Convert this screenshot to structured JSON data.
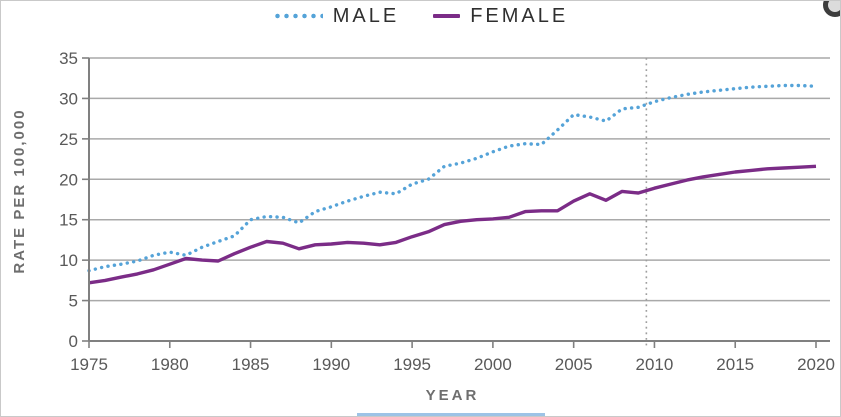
{
  "colors": {
    "male_line": "#55a3d8",
    "female_line": "#7b2c87",
    "grid": "#a9a9a9",
    "axis": "#808080",
    "tick_label": "#595959",
    "axis_title": "#6e6e6e",
    "legend_text": "#2f2f2f",
    "reference_line": "#9e9e9e",
    "bottom_strip": "#9dc3e6"
  },
  "figure": {
    "legend_position": "top-center",
    "corner_icon": "circle-badge-icon"
  },
  "chart_data": {
    "type": "line",
    "title": "",
    "xlabel": "YEAR",
    "ylabel": "RATE PER 100,000",
    "xlim": [
      1975,
      2020
    ],
    "ylim": [
      0,
      35
    ],
    "x_ticks": [
      1975,
      1980,
      1985,
      1990,
      1995,
      2000,
      2005,
      2010,
      2015,
      2020
    ],
    "y_ticks": [
      0,
      5,
      10,
      15,
      20,
      25,
      30,
      35
    ],
    "grid": "horizontal",
    "legend_position": "top-center",
    "reference_line": {
      "x": 2009.5,
      "style": "dotted"
    },
    "x": [
      1975,
      1976,
      1977,
      1978,
      1979,
      1980,
      1981,
      1982,
      1983,
      1984,
      1985,
      1986,
      1987,
      1988,
      1989,
      1990,
      1991,
      1992,
      1993,
      1994,
      1995,
      1996,
      1997,
      1998,
      1999,
      2000,
      2001,
      2002,
      2003,
      2004,
      2005,
      2006,
      2007,
      2008,
      2009,
      2010,
      2011,
      2012,
      2013,
      2014,
      2015,
      2016,
      2017,
      2018,
      2019,
      2020
    ],
    "series": [
      {
        "name": "MALE",
        "style": "dotted",
        "color": "#55a3d8",
        "values": [
          8.7,
          9.2,
          9.5,
          9.9,
          10.6,
          11.0,
          10.6,
          11.6,
          12.3,
          13.0,
          15.0,
          15.4,
          15.3,
          14.6,
          16.0,
          16.6,
          17.3,
          17.9,
          18.4,
          18.2,
          19.4,
          20.0,
          21.6,
          22.0,
          22.6,
          23.4,
          24.1,
          24.4,
          24.3,
          26.1,
          28.0,
          27.7,
          27.2,
          28.7,
          28.9,
          29.6,
          30.1,
          30.5,
          30.8,
          31.0,
          31.2,
          31.4,
          31.5,
          31.6,
          31.6,
          31.5
        ]
      },
      {
        "name": "FEMALE",
        "style": "solid",
        "color": "#7b2c87",
        "values": [
          7.2,
          7.5,
          7.9,
          8.3,
          8.8,
          9.5,
          10.2,
          10.0,
          9.9,
          10.8,
          11.6,
          12.3,
          12.1,
          11.4,
          11.9,
          12.0,
          12.2,
          12.1,
          11.9,
          12.2,
          12.9,
          13.5,
          14.4,
          14.8,
          15.0,
          15.1,
          15.3,
          16.0,
          16.1,
          16.1,
          17.3,
          18.2,
          17.4,
          18.5,
          18.3,
          18.9,
          19.4,
          19.9,
          20.3,
          20.6,
          20.9,
          21.1,
          21.3,
          21.4,
          21.5,
          21.6
        ]
      }
    ]
  }
}
